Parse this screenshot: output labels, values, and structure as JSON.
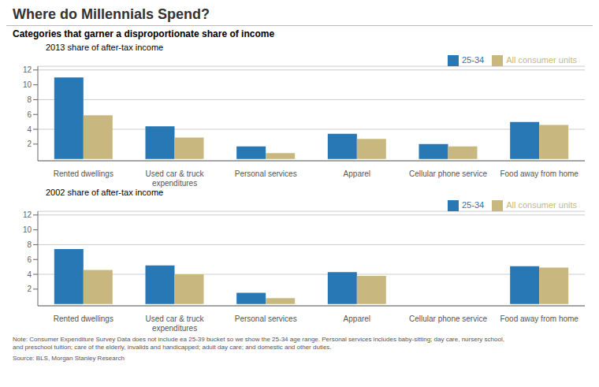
{
  "title": "Where do Millennials Spend?",
  "subtitle": "Categories that garner a disproportionate share of income",
  "annotations": [
    "Note: Consumer Expenditure Survey Data does not include ea 25-39 bucket so we show the 25-34 age range. Personal services includes baby-sitting; day care, nursery school,\nand preschool tuition; care of the elderly, invalids and handicapped; adult day care; and domestic and other duties.",
    "Source: BLS, Morgan Stanley Research"
  ],
  "chart_data": [
    {
      "type": "bar",
      "title": "2013 share of after-tax income",
      "categories": [
        "Rented dwellings",
        "Used car & truck\nexpenditures",
        "Personal services",
        "Apparel",
        "Cellular phone service",
        "Food away from home"
      ],
      "series": [
        {
          "name": "25-34",
          "color": "#2878b5",
          "values": [
            11.0,
            4.4,
            1.7,
            3.4,
            2.0,
            5.0
          ]
        },
        {
          "name": "All consumer units",
          "color": "#c8b880",
          "values": [
            5.9,
            2.9,
            0.8,
            2.7,
            1.7,
            4.6
          ]
        }
      ],
      "ylim": [
        -0.25,
        12.5
      ],
      "yticks": [
        2,
        4,
        6,
        8,
        10,
        12
      ],
      "grid": true,
      "legend": "upper right"
    },
    {
      "type": "bar",
      "title": "2002 share of after-tax income",
      "categories": [
        "Rented dwellings",
        "Used car & truck\nexpenditures",
        "Personal services",
        "Apparel",
        "Cellular phone service",
        "Food away from home"
      ],
      "series": [
        {
          "name": "25-34",
          "color": "#2878b5",
          "values": [
            7.4,
            5.2,
            1.5,
            4.3,
            0.0,
            5.1
          ]
        },
        {
          "name": "All consumer units",
          "color": "#c8b880",
          "values": [
            4.6,
            4.0,
            0.8,
            3.8,
            0.0,
            4.9
          ]
        }
      ],
      "ylim": [
        -0.25,
        12.5
      ],
      "yticks": [
        2,
        4,
        6,
        8,
        10,
        12
      ],
      "grid": true,
      "legend": "upper right"
    }
  ]
}
